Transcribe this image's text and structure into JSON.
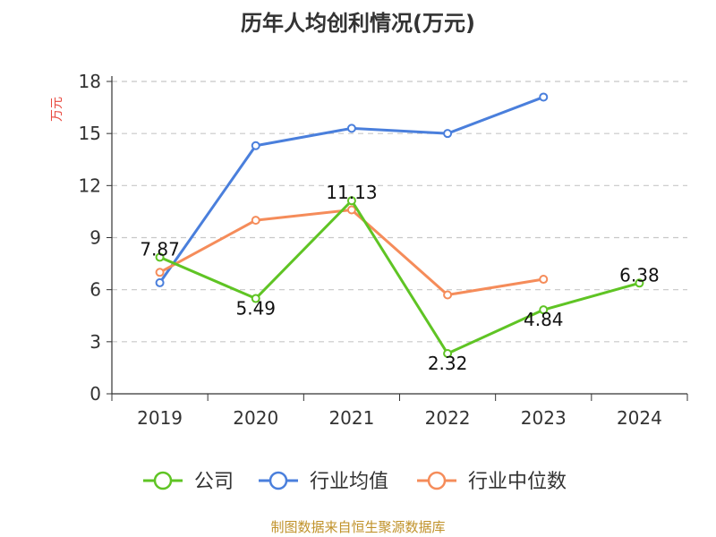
{
  "chart_data": {
    "type": "line",
    "title": "历年人均创利情况(万元)",
    "ylabel": "万元",
    "ylim": [
      0,
      18
    ],
    "yticks": [
      0,
      3,
      6,
      9,
      12,
      15,
      18
    ],
    "grid": true,
    "legend_position": "bottom",
    "categories": [
      "2019",
      "2020",
      "2021",
      "2022",
      "2023",
      "2024"
    ],
    "series": [
      {
        "name": "公司",
        "color": "#5fc424",
        "values": [
          7.87,
          5.49,
          11.13,
          2.32,
          4.84,
          6.38
        ],
        "labels": [
          "7.87",
          "5.49",
          "11.13",
          "2.32",
          "4.84",
          "6.38"
        ]
      },
      {
        "name": "行业均值",
        "color": "#4a7fdc",
        "values": [
          6.4,
          14.3,
          15.3,
          15.0,
          17.1,
          null
        ]
      },
      {
        "name": "行业中位数",
        "color": "#f58c5a",
        "values": [
          7.0,
          10.0,
          10.6,
          5.7,
          6.6,
          null
        ]
      }
    ]
  },
  "source": "制图数据来自恒生聚源数据库"
}
